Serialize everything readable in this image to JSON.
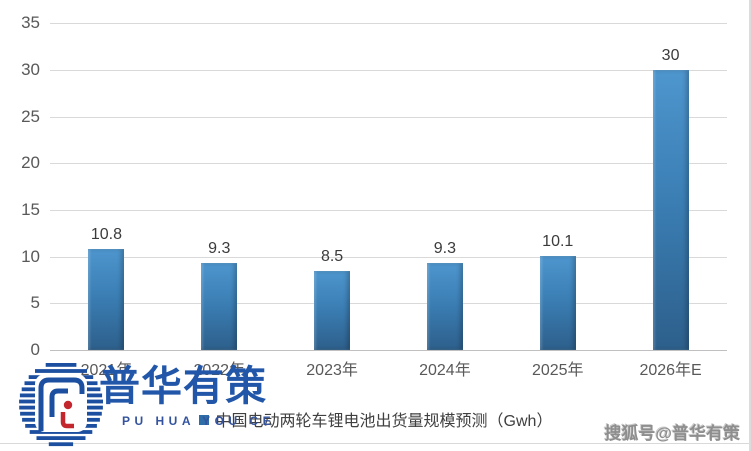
{
  "chart_data": {
    "type": "bar",
    "title": "",
    "categories": [
      "2021年",
      "2022年",
      "2023年",
      "2024年",
      "2025年",
      "2026年E"
    ],
    "values": [
      10.8,
      9.3,
      8.5,
      9.3,
      10.1,
      30
    ],
    "value_labels": [
      "10.8",
      "9.3",
      "8.5",
      "9.3",
      "10.1",
      "30"
    ],
    "legend": "中国电动两轮车锂电池出货量规模预测（Gwh）",
    "xlabel": "",
    "ylabel": "",
    "ylim": [
      0,
      35
    ],
    "yticks": [
      0,
      5,
      10,
      15,
      20,
      25,
      30,
      35
    ],
    "grid": true,
    "legend_position": "bottom",
    "colors": {
      "bar_top": "#4e96ce",
      "bar_mid": "#3b7fb5",
      "bar_bottom": "#2d5f8b",
      "gridline": "#d9d9d9",
      "axis_line": "#c0c0c0",
      "tick_label": "#595959",
      "value_label": "#3b3b3b",
      "legend_swatch": "#2e6da8",
      "legend_text": "#404040"
    }
  },
  "watermark": {
    "logo_text": "普华有策",
    "logo_subtext": "PU HUA YOU CE",
    "logo_blue": "#1d4fa0",
    "logo_red": "#c4262e",
    "sohu_text": "搜狐号@普华有策"
  }
}
